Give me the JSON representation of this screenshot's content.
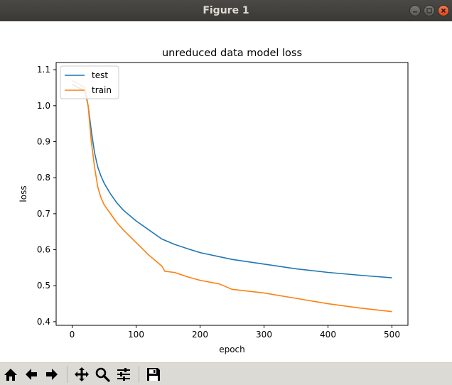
{
  "window": {
    "title": "Figure 1"
  },
  "toolbar": {
    "buttons": [
      {
        "name": "home-icon"
      },
      {
        "name": "back-arrow-icon"
      },
      {
        "name": "forward-arrow-icon"
      },
      {
        "name": "pan-icon"
      },
      {
        "name": "zoom-icon"
      },
      {
        "name": "subplots-config-icon"
      },
      {
        "name": "save-icon"
      }
    ]
  },
  "colors": {
    "test": "#1f77b4",
    "train": "#ff7f0e",
    "toolbar_bg": "#dcdad5",
    "close_button": "#e95420"
  },
  "chart_data": {
    "type": "line",
    "title": "unreduced data model loss",
    "xlabel": "epoch",
    "ylabel": "loss",
    "xlim": [
      -25,
      525
    ],
    "ylim": [
      0.39,
      1.12
    ],
    "xticks": [
      0,
      100,
      200,
      300,
      400,
      500
    ],
    "yticks": [
      0.4,
      0.5,
      0.6,
      0.7,
      0.8,
      0.9,
      1.0,
      1.1
    ],
    "yticklabels": [
      "0.4",
      "0.5",
      "0.6",
      "0.7",
      "0.8",
      "0.9",
      "1.0",
      "1.1"
    ],
    "grid": false,
    "legend": "upper left",
    "series": [
      {
        "name": "test",
        "color": "#1f77b4",
        "x": [
          0,
          10,
          20,
          25,
          30,
          35,
          40,
          45,
          50,
          60,
          70,
          80,
          100,
          120,
          140,
          160,
          180,
          200,
          250,
          300,
          350,
          400,
          450,
          500
        ],
        "y": [
          1.06,
          1.05,
          1.04,
          1.0,
          0.93,
          0.87,
          0.83,
          0.805,
          0.785,
          0.755,
          0.73,
          0.71,
          0.68,
          0.655,
          0.63,
          0.615,
          0.603,
          0.592,
          0.573,
          0.56,
          0.547,
          0.537,
          0.529,
          0.522
        ]
      },
      {
        "name": "train",
        "color": "#ff7f0e",
        "x": [
          0,
          10,
          20,
          25,
          30,
          35,
          40,
          45,
          50,
          60,
          70,
          80,
          100,
          120,
          140,
          145,
          160,
          180,
          200,
          230,
          250,
          300,
          350,
          400,
          450,
          500
        ],
        "y": [
          1.07,
          1.06,
          1.05,
          1.0,
          0.9,
          0.83,
          0.775,
          0.745,
          0.725,
          0.7,
          0.675,
          0.655,
          0.62,
          0.585,
          0.555,
          0.54,
          0.537,
          0.525,
          0.515,
          0.505,
          0.49,
          0.48,
          0.465,
          0.45,
          0.438,
          0.428
        ]
      }
    ]
  }
}
